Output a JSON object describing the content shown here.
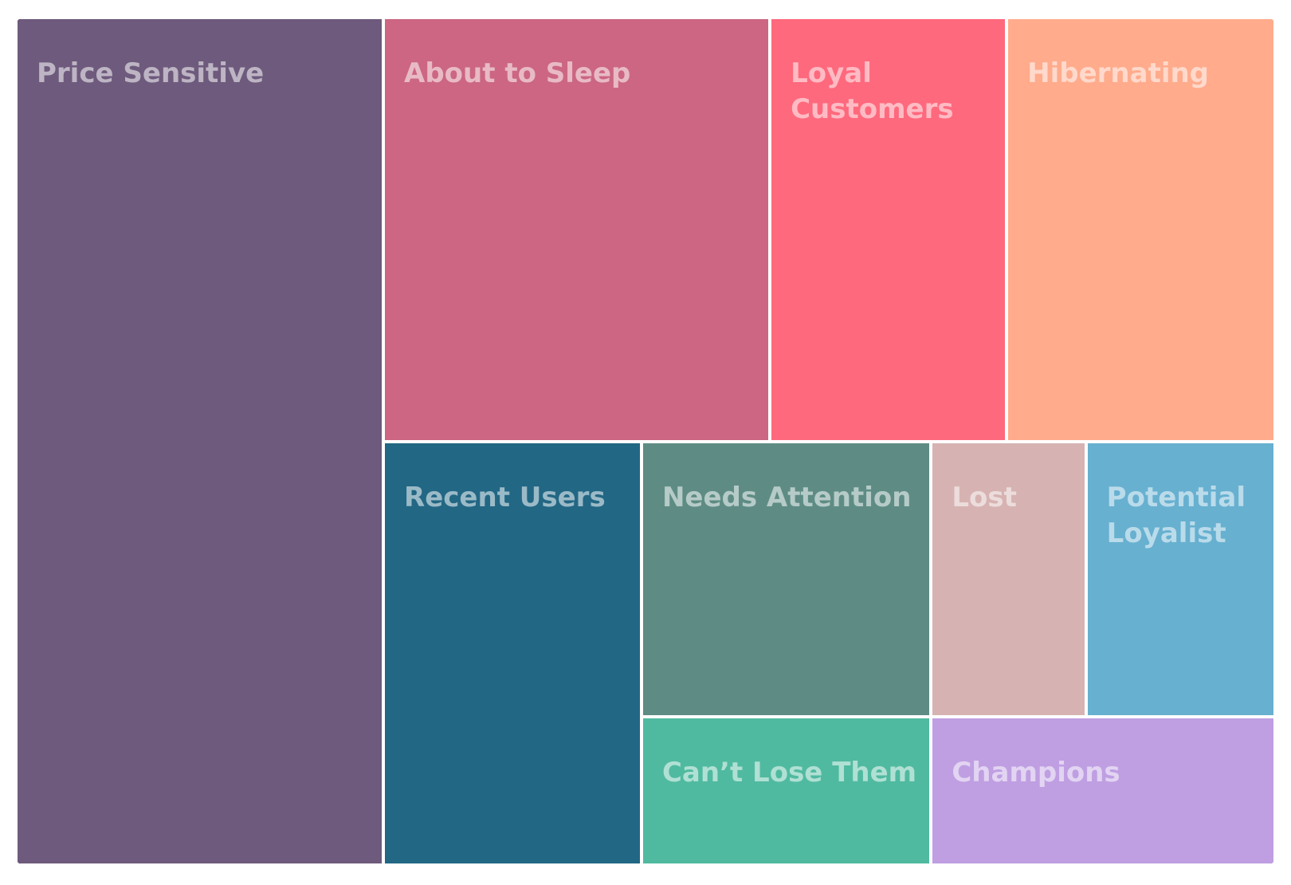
{
  "chart_data": {
    "type": "treemap",
    "segments": [
      {
        "label": "Price Sensitive",
        "value": 477,
        "color": "#6e5a7c"
      },
      {
        "label": "About to Sleep",
        "value": 245,
        "color": "#cc6682"
      },
      {
        "label": "Loyal Customers",
        "value": 149,
        "color": "#ff697d"
      },
      {
        "label": "Hibernating",
        "value": 144,
        "color": "#ffab8c"
      },
      {
        "label": "Recent Users",
        "value": 171,
        "color": "#226784"
      },
      {
        "label": "Needs Attention",
        "value": 120,
        "color": "#5e8c85"
      },
      {
        "label": "Lost",
        "value": 63,
        "color": "#d6b3b2"
      },
      {
        "label": "Potential Loyalist",
        "value": 63,
        "color": "#67b0d0"
      },
      {
        "label": "Can’t Lose Them",
        "value": 65,
        "color": "#50baa0"
      },
      {
        "label": "Champions",
        "value": 69,
        "color": "#bf9fe2"
      }
    ]
  }
}
